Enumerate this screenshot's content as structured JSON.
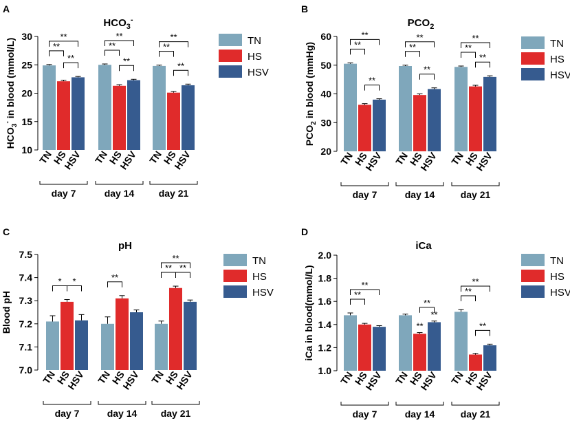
{
  "figure": {
    "colors": {
      "TN": "#7fa7bb",
      "HS": "#e02b2b",
      "HSV": "#365b8f"
    },
    "legend": [
      "TN",
      "HS",
      "HSV"
    ]
  },
  "chart_data": [
    {
      "panel": "A",
      "type": "bar",
      "title": "HCO3-",
      "title_main": "HCO",
      "title_sub": "3",
      "title_sup": "-",
      "ylabel": "HCO3- in blood (mmol/L)",
      "ylabel_parts": {
        "pre": "HCO",
        "sub": "3",
        "sup": "-",
        "post": "in blood (mmol/L)"
      },
      "ylim": [
        10,
        30
      ],
      "yticks": [
        "10",
        "15",
        "20",
        "25",
        "30"
      ],
      "groups": [
        "day 7",
        "day 14",
        "day 21"
      ],
      "bar_labels": [
        "TN",
        "HS",
        "HSV"
      ],
      "series": [
        {
          "name": "TN",
          "values": [
            24.9,
            25.0,
            24.8
          ],
          "errors": [
            0.15,
            0.15,
            0.15
          ]
        },
        {
          "name": "HS",
          "values": [
            22.1,
            21.3,
            20.1
          ],
          "errors": [
            0.2,
            0.2,
            0.2
          ]
        },
        {
          "name": "HSV",
          "values": [
            22.8,
            22.3,
            21.4
          ],
          "errors": [
            0.15,
            0.15,
            0.2
          ]
        }
      ],
      "annotations": [
        {
          "group": 0,
          "from": 0,
          "to": 2,
          "label": "**",
          "level": 0
        },
        {
          "group": 0,
          "from": 0,
          "to": 1,
          "label": "**",
          "level": 1
        },
        {
          "group": 0,
          "from": 1,
          "to": 2,
          "label": "**",
          "level": 2
        },
        {
          "group": 1,
          "from": 0,
          "to": 2,
          "label": "**",
          "level": 0
        },
        {
          "group": 1,
          "from": 0,
          "to": 1,
          "label": "**",
          "level": 1
        },
        {
          "group": 1,
          "from": 1,
          "to": 2,
          "label": "**",
          "level": 2
        },
        {
          "group": 2,
          "from": 0,
          "to": 2,
          "label": "**",
          "level": 0
        },
        {
          "group": 2,
          "from": 0,
          "to": 1,
          "label": "**",
          "level": 1
        },
        {
          "group": 2,
          "from": 1,
          "to": 2,
          "label": "**",
          "level": 2
        }
      ]
    },
    {
      "panel": "B",
      "type": "bar",
      "title": "PCO2",
      "title_main": "PCO",
      "title_sub": "2",
      "title_sup": "",
      "ylabel": "PCO2 in blood (mmHg)",
      "ylabel_parts": {
        "pre": "PCO",
        "sub": "2",
        "sup": "",
        "post": "in blood (mmHg)"
      },
      "ylim": [
        20,
        60
      ],
      "yticks": [
        "20",
        "30",
        "40",
        "50",
        "60"
      ],
      "groups": [
        "day 7",
        "day 14",
        "day 21"
      ],
      "bar_labels": [
        "TN",
        "HS",
        "HSV"
      ],
      "series": [
        {
          "name": "TN",
          "values": [
            50.5,
            49.7,
            49.4
          ],
          "errors": [
            0.3,
            0.3,
            0.3
          ]
        },
        {
          "name": "HS",
          "values": [
            36.2,
            39.6,
            42.6
          ],
          "errors": [
            0.4,
            0.4,
            0.4
          ]
        },
        {
          "name": "HSV",
          "values": [
            38.0,
            41.7,
            45.9
          ],
          "errors": [
            0.3,
            0.4,
            0.4
          ]
        }
      ],
      "annotations": [
        {
          "group": 0,
          "from": 0,
          "to": 2,
          "label": "**",
          "level": 0
        },
        {
          "group": 0,
          "from": 0,
          "to": 1,
          "label": "**",
          "level": 1
        },
        {
          "group": 0,
          "from": 1,
          "to": 2,
          "label": "**",
          "level": 2
        },
        {
          "group": 1,
          "from": 0,
          "to": 2,
          "label": "**",
          "level": 0
        },
        {
          "group": 1,
          "from": 0,
          "to": 1,
          "label": "**",
          "level": 1
        },
        {
          "group": 1,
          "from": 1,
          "to": 2,
          "label": "**",
          "level": 2
        },
        {
          "group": 2,
          "from": 0,
          "to": 2,
          "label": "**",
          "level": 0
        },
        {
          "group": 2,
          "from": 0,
          "to": 1,
          "label": "**",
          "level": 1
        },
        {
          "group": 2,
          "from": 1,
          "to": 2,
          "label": "**",
          "level": 2
        }
      ]
    },
    {
      "panel": "C",
      "type": "bar",
      "title": "pH",
      "title_main": "pH",
      "title_sub": "",
      "title_sup": "",
      "ylabel": "Blood pH",
      "ylabel_parts": {
        "pre": "Blood pH",
        "sub": "",
        "sup": "",
        "post": ""
      },
      "ylim": [
        7.0,
        7.5
      ],
      "yticks": [
        "7.0",
        "7.1",
        "7.2",
        "7.3",
        "7.4",
        "7.5"
      ],
      "groups": [
        "day 7",
        "day 14",
        "day 21"
      ],
      "bar_labels": [
        "TN",
        "HS",
        "HSV"
      ],
      "series": [
        {
          "name": "TN",
          "values": [
            7.21,
            7.2,
            7.2
          ],
          "errors": [
            0.025,
            0.03,
            0.012
          ]
        },
        {
          "name": "HS",
          "values": [
            7.295,
            7.31,
            7.355
          ],
          "errors": [
            0.01,
            0.012,
            0.008
          ]
        },
        {
          "name": "HSV",
          "values": [
            7.215,
            7.25,
            7.295
          ],
          "errors": [
            0.025,
            0.01,
            0.008
          ]
        }
      ],
      "annotations": [
        {
          "group": 0,
          "from": 0,
          "to": 1,
          "label": "*",
          "level": 1
        },
        {
          "group": 0,
          "from": 1,
          "to": 2,
          "label": "*",
          "level": 2
        },
        {
          "group": 1,
          "from": 0,
          "to": 1,
          "label": "**",
          "level": 1
        },
        {
          "group": 2,
          "from": 0,
          "to": 2,
          "label": "**",
          "level": 0
        },
        {
          "group": 2,
          "from": 0,
          "to": 1,
          "label": "**",
          "level": 1
        },
        {
          "group": 2,
          "from": 1,
          "to": 2,
          "label": "**",
          "level": 2
        }
      ]
    },
    {
      "panel": "D",
      "type": "bar",
      "title": "iCa",
      "title_main": "iCa",
      "title_sub": "",
      "title_sup": "",
      "ylabel": "iCa in blood(mmol/L)",
      "ylabel_parts": {
        "pre": "iCa in blood(mmol/L)",
        "sub": "",
        "sup": "",
        "post": ""
      },
      "ylim": [
        1.0,
        2.0
      ],
      "yticks": [
        "1.0",
        "1.2",
        "1.4",
        "1.6",
        "1.8",
        "2.0"
      ],
      "groups": [
        "day 7",
        "day 14",
        "day 21"
      ],
      "bar_labels": [
        "TN",
        "HS",
        "HSV"
      ],
      "series": [
        {
          "name": "TN",
          "values": [
            1.48,
            1.48,
            1.51
          ],
          "errors": [
            0.02,
            0.01,
            0.02
          ]
        },
        {
          "name": "HS",
          "values": [
            1.4,
            1.32,
            1.14
          ],
          "errors": [
            0.01,
            0.01,
            0.01
          ]
        },
        {
          "name": "HSV",
          "values": [
            1.38,
            1.42,
            1.22
          ],
          "errors": [
            0.01,
            0.01,
            0.01
          ]
        }
      ],
      "annotations": [
        {
          "group": 0,
          "from": 0,
          "to": 2,
          "label": "**",
          "level": 0
        },
        {
          "group": 0,
          "from": 0,
          "to": 1,
          "label": "**",
          "level": 1
        },
        {
          "group": 1,
          "from": 1,
          "to": 2,
          "label": "**",
          "level": 2
        },
        {
          "group": 1,
          "from": 1,
          "to": 1,
          "label": "**",
          "level": 3
        },
        {
          "group": 1,
          "from": 2,
          "to": 2,
          "label": "**",
          "level": 3
        },
        {
          "group": 2,
          "from": 0,
          "to": 2,
          "label": "**",
          "level": 0
        },
        {
          "group": 2,
          "from": 0,
          "to": 1,
          "label": "**",
          "level": 1
        },
        {
          "group": 2,
          "from": 1,
          "to": 2,
          "label": "**",
          "level": 2
        }
      ]
    }
  ]
}
